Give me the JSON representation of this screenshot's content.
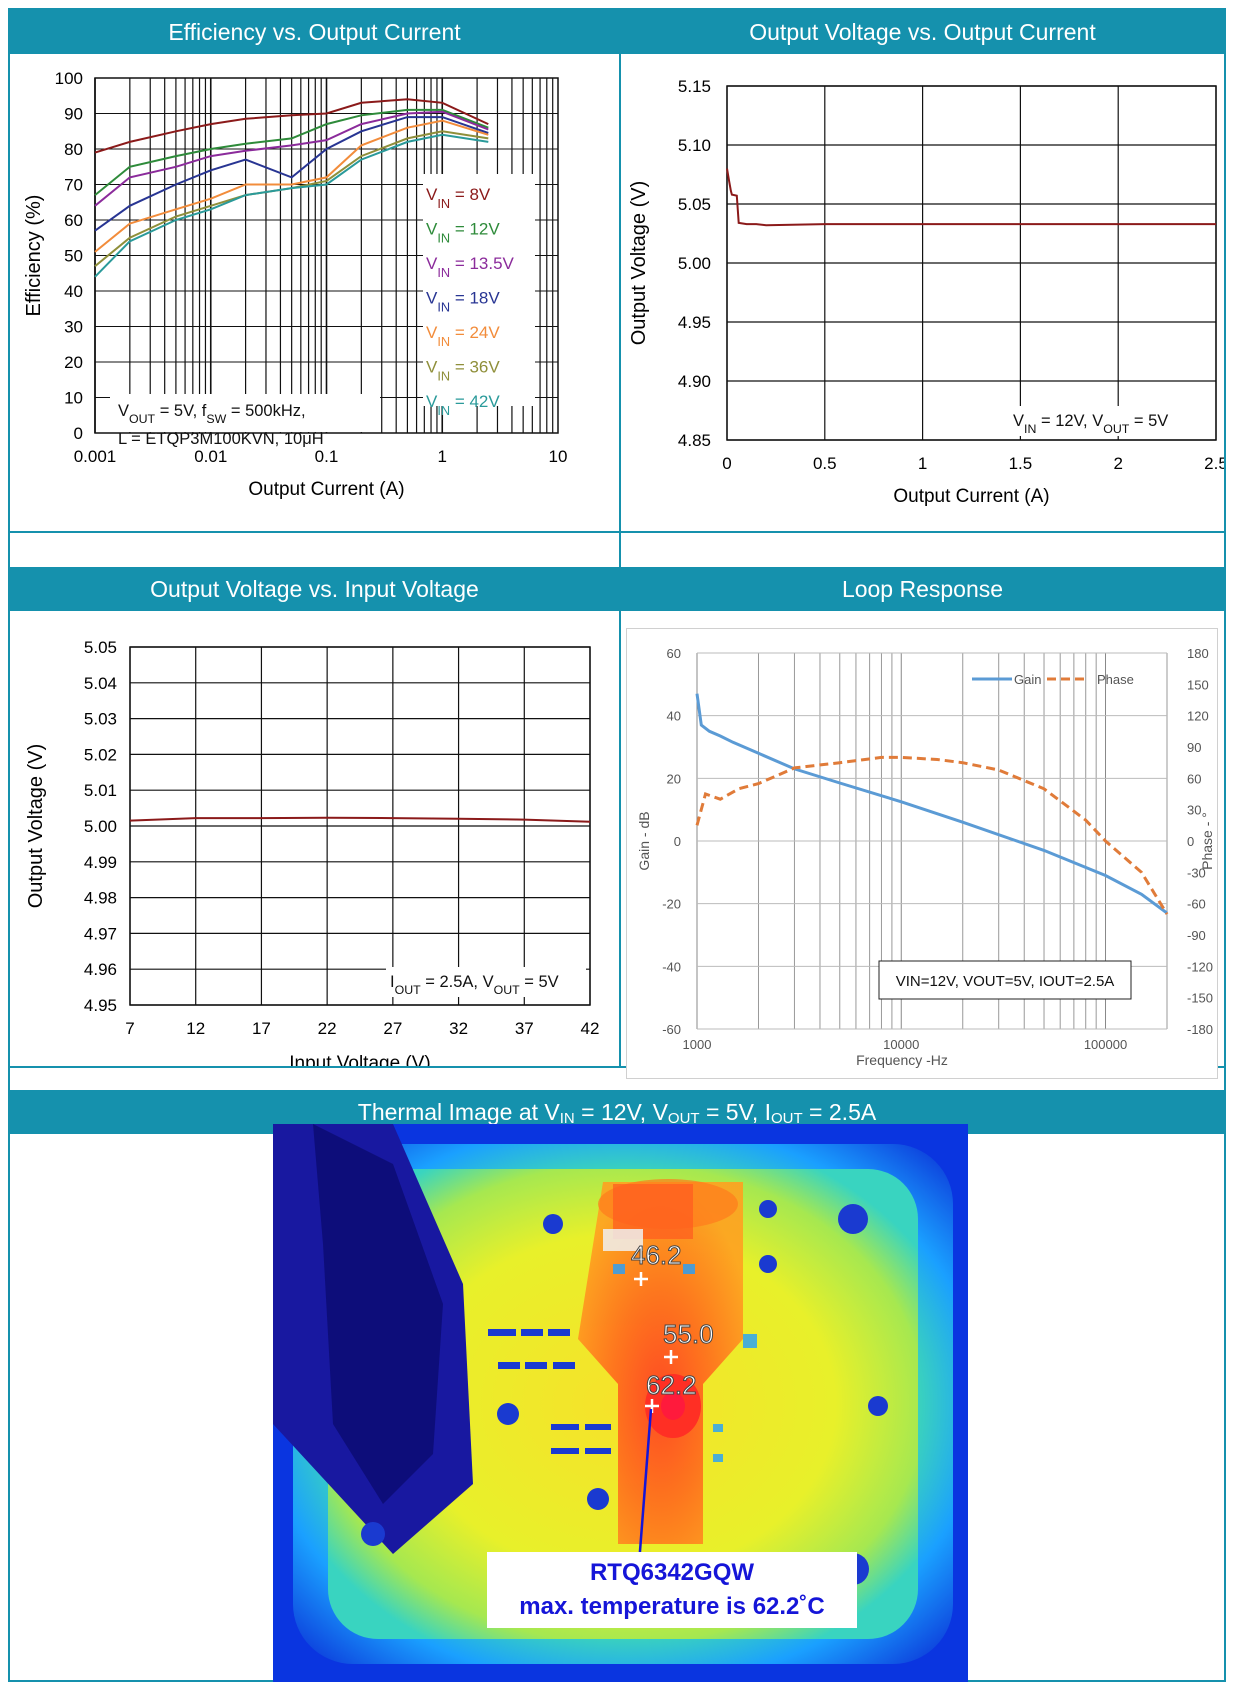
{
  "headers": {
    "efficiency": "Efficiency vs. Output Current",
    "vout_iout": "Output Voltage vs. Output Current",
    "vout_vin": "Output Voltage vs. Input Voltage",
    "loop": "Loop Response",
    "thermal": {
      "prefix": "Thermal Image at V",
      "sub1": "IN",
      "mid1": " = 12V, V",
      "sub2": "OUT",
      "mid2": " = 5V, I",
      "sub3": "OUT",
      "end": " = 2.5A"
    }
  },
  "colors": {
    "header_bg": "#1591ad",
    "curve_red": "#8b1a1a",
    "gain": "#5b9bd5",
    "phase": "#e07b39"
  },
  "chart_data": [
    {
      "id": "efficiency",
      "type": "line",
      "xscale": "log",
      "xlim": [
        0.001,
        10
      ],
      "ylim": [
        0,
        100
      ],
      "xlabel": "Output Current (A)",
      "ylabel": "Efficiency (%)",
      "xticks": [
        "0.001",
        "0.01",
        "0.1",
        "1",
        "10"
      ],
      "yticks": [
        "0",
        "10",
        "20",
        "30",
        "40",
        "50",
        "60",
        "70",
        "80",
        "90",
        "100"
      ],
      "note_lines": [
        "V_OUT = 5V, f_SW = 500kHz,",
        "L = ETQP3M100KVN, 10μH"
      ],
      "series": [
        {
          "name": "V_IN = 8V",
          "color": "#8b1a1a",
          "x": [
            0.001,
            0.002,
            0.005,
            0.01,
            0.02,
            0.05,
            0.1,
            0.2,
            0.5,
            1,
            2.5
          ],
          "y": [
            79,
            82,
            85,
            87,
            88.5,
            89.5,
            90,
            93,
            94,
            93,
            87
          ]
        },
        {
          "name": "V_IN = 12V",
          "color": "#2e8b3a",
          "x": [
            0.001,
            0.002,
            0.005,
            0.01,
            0.02,
            0.05,
            0.1,
            0.2,
            0.5,
            1,
            2.5
          ],
          "y": [
            67,
            75,
            78,
            80,
            81.5,
            83,
            87,
            89.5,
            91,
            91,
            86
          ]
        },
        {
          "name": "V_IN = 13.5V",
          "color": "#8b2b9b",
          "x": [
            0.001,
            0.002,
            0.005,
            0.01,
            0.02,
            0.05,
            0.1,
            0.2,
            0.5,
            1,
            2.5
          ],
          "y": [
            64,
            72,
            75,
            78,
            79.5,
            81,
            82.5,
            87,
            90,
            90.5,
            85.5
          ]
        },
        {
          "name": "V_IN = 18V",
          "color": "#283593",
          "x": [
            0.001,
            0.002,
            0.005,
            0.01,
            0.02,
            0.05,
            0.1,
            0.2,
            0.5,
            1,
            2.5
          ],
          "y": [
            57,
            64,
            70,
            74,
            77,
            72,
            80,
            85,
            89,
            89,
            84.5
          ]
        },
        {
          "name": "V_IN = 24V",
          "color": "#f28c3b",
          "x": [
            0.001,
            0.002,
            0.005,
            0.01,
            0.02,
            0.05,
            0.1,
            0.2,
            0.5,
            1,
            2.5
          ],
          "y": [
            51,
            59,
            63,
            66,
            70,
            70,
            72,
            81,
            86,
            88,
            84
          ]
        },
        {
          "name": "V_IN = 36V",
          "color": "#8f8f3a",
          "x": [
            0.001,
            0.002,
            0.005,
            0.01,
            0.02,
            0.05,
            0.1,
            0.2,
            0.5,
            1,
            2.5
          ],
          "y": [
            47,
            55,
            61,
            64,
            67,
            69,
            71,
            78,
            83,
            85,
            83
          ]
        },
        {
          "name": "V_IN = 42V",
          "color": "#2a9a9a",
          "x": [
            0.001,
            0.002,
            0.005,
            0.01,
            0.02,
            0.05,
            0.1,
            0.2,
            0.5,
            1,
            2.5
          ],
          "y": [
            44,
            54,
            60,
            63,
            67,
            69,
            70,
            77,
            82,
            84,
            82
          ]
        }
      ]
    },
    {
      "id": "vout_iout",
      "type": "line",
      "xlim": [
        0,
        2.5
      ],
      "ylim": [
        4.85,
        5.15
      ],
      "xlabel": "Output Current (A)",
      "ylabel": "Output Voltage (V)",
      "xticks": [
        "0",
        "0.5",
        "1",
        "1.5",
        "2",
        "2.5"
      ],
      "yticks": [
        "4.85",
        "4.90",
        "4.95",
        "5.00",
        "5.05",
        "5.10",
        "5.15"
      ],
      "note": "V_IN = 12V, V_OUT = 5V",
      "series": [
        {
          "name": "",
          "color": "#8b1a1a",
          "x": [
            0,
            0.01,
            0.02,
            0.025,
            0.05,
            0.055,
            0.06,
            0.1,
            0.15,
            0.2,
            0.5,
            1,
            1.5,
            2,
            2.5
          ],
          "y": [
            5.08,
            5.07,
            5.061,
            5.058,
            5.057,
            5.045,
            5.034,
            5.033,
            5.033,
            5.032,
            5.033,
            5.033,
            5.033,
            5.033,
            5.033
          ]
        }
      ]
    },
    {
      "id": "vout_vin",
      "type": "line",
      "xlim": [
        7,
        42
      ],
      "ylim": [
        4.95,
        5.05
      ],
      "xlabel": "Input Voltage (V)",
      "ylabel": "Output Voltage (V)",
      "xticks": [
        "7",
        "12",
        "17",
        "22",
        "27",
        "32",
        "37",
        "42"
      ],
      "yticks": [
        "4.95",
        "4.96",
        "4.97",
        "4.98",
        "4.99",
        "5.00",
        "5.01",
        "5.02",
        "5.03",
        "5.04",
        "5.05"
      ],
      "note": "I_OUT = 2.5A, V_OUT = 5V",
      "series": [
        {
          "name": "",
          "color": "#8b1a1a",
          "x": [
            7,
            12,
            17,
            22,
            27,
            32,
            37,
            42
          ],
          "y": [
            5.0015,
            5.0022,
            5.0022,
            5.0023,
            5.0022,
            5.002,
            5.0018,
            5.0012
          ]
        }
      ]
    },
    {
      "id": "loop",
      "type": "line",
      "xscale": "log",
      "xlim": [
        1000,
        200000
      ],
      "ylim": [
        -60,
        60
      ],
      "y2lim": [
        -180,
        180
      ],
      "xlabel": "Frequency -Hz",
      "ylabel": "Gain - dB",
      "y2label": "Phase - °",
      "xticks": [
        "1000",
        "10000",
        "100000"
      ],
      "yticks": [
        "-60",
        "-40",
        "-20",
        "0",
        "20",
        "40",
        "60"
      ],
      "y2ticks": [
        "-180",
        "-150",
        "-120",
        "-90",
        "-60",
        "-30",
        "0",
        "30",
        "60",
        "90",
        "120",
        "150",
        "180"
      ],
      "note": "VIN=12V, VOUT=5V, IOUT=2.5A",
      "series": [
        {
          "name": "Gain",
          "color": "#5b9bd5",
          "axis": "left",
          "x": [
            1000,
            1050,
            1150,
            1300,
            1500,
            2000,
            3000,
            5000,
            10000,
            20000,
            50000,
            100000,
            150000,
            200000
          ],
          "y": [
            47,
            37,
            35,
            33.5,
            31.5,
            28,
            23,
            18.5,
            12.5,
            6,
            -3,
            -11,
            -17,
            -23
          ]
        },
        {
          "name": "Phase",
          "color": "#e07b39",
          "axis": "right",
          "x": [
            1000,
            1100,
            1300,
            1600,
            2000,
            3000,
            5000,
            8000,
            10000,
            15000,
            20000,
            30000,
            50000,
            80000,
            100000,
            150000,
            200000
          ],
          "y": [
            15,
            45,
            40,
            50,
            55,
            70,
            75,
            80,
            80,
            78,
            75,
            68,
            50,
            20,
            0,
            -30,
            -70
          ]
        }
      ]
    }
  ],
  "thermal": {
    "spots": [
      {
        "value": "46.2"
      },
      {
        "value": "55.0"
      },
      {
        "value": "62.2"
      }
    ],
    "callout_line1": "RTQ6342GQW",
    "callout_line2": "max. temperature is 62.2˚C"
  }
}
